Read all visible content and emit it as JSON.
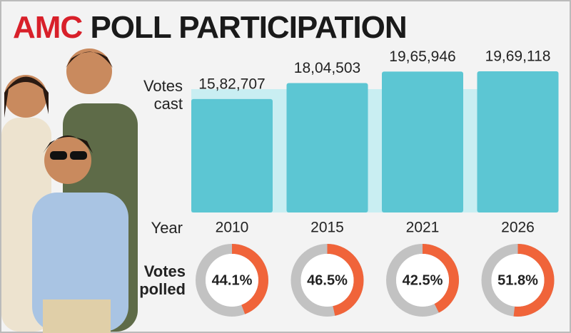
{
  "header": {
    "highlight": "AMC",
    "title": "POLL PARTICIPATION"
  },
  "chart_data": [
    {
      "type": "bar",
      "label": "Votes cast",
      "x_label": "Year",
      "categories": [
        "2010",
        "2015",
        "2021",
        "2026"
      ],
      "values": [
        1582707,
        1804503,
        1965946,
        1969118
      ],
      "value_labels": [
        "15,82,707",
        "18,04,503",
        "19,65,946",
        "19,69,118"
      ],
      "color": "#5cc6d3"
    },
    {
      "type": "donut",
      "label": "Votes polled",
      "values": [
        44.1,
        46.5,
        42.5,
        51.8
      ],
      "value_labels": [
        "44.1%",
        "46.5%",
        "42.5%",
        "51.8%"
      ],
      "color": "#f0643a",
      "track_color": "#c2c2c2"
    }
  ]
}
